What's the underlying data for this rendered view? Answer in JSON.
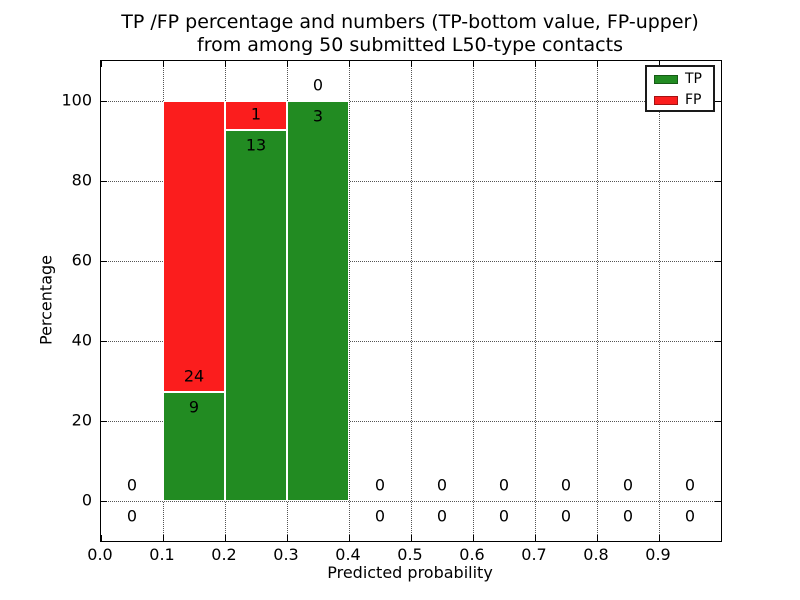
{
  "title": {
    "line1": "TP /FP percentage and numbers (TP-bottom value, FP-upper)",
    "line2": "from among 50 submitted L50-type contacts"
  },
  "axes": {
    "xlabel": "Predicted probability",
    "ylabel": "Percentage",
    "x_tick_values": [
      0.0,
      0.1,
      0.2,
      0.3,
      0.4,
      0.5,
      0.6,
      0.7,
      0.8,
      0.9
    ],
    "x_tick_labels": [
      "0.0",
      "0.1",
      "0.2",
      "0.3",
      "0.4",
      "0.5",
      "0.6",
      "0.7",
      "0.8",
      "0.9"
    ],
    "y_tick_values": [
      0,
      20,
      40,
      60,
      80,
      100
    ],
    "y_tick_labels": [
      "0",
      "20",
      "40",
      "60",
      "80",
      "100"
    ],
    "xlim": [
      0.0,
      1.0
    ],
    "ylim": [
      -10,
      110
    ],
    "grid": "dotted"
  },
  "legend": {
    "position": "upper-right",
    "items": [
      {
        "label": "TP",
        "color": "#228b22"
      },
      {
        "label": "FP",
        "color": "#fb1d1d"
      }
    ]
  },
  "chart_data": {
    "type": "bar",
    "stacked": true,
    "total_contacts": 50,
    "tp_color": "#228b22",
    "fp_color": "#fb1d1d",
    "bar_edge_color": "#ffffff",
    "bins": [
      {
        "range": [
          0.0,
          0.1
        ],
        "tp_count": 0,
        "fp_count": 0,
        "tp_pct": 0,
        "fp_pct": 0
      },
      {
        "range": [
          0.1,
          0.2
        ],
        "tp_count": 9,
        "fp_count": 24,
        "tp_pct": 27.27,
        "fp_pct": 72.73
      },
      {
        "range": [
          0.2,
          0.3
        ],
        "tp_count": 13,
        "fp_count": 1,
        "tp_pct": 92.86,
        "fp_pct": 7.14
      },
      {
        "range": [
          0.3,
          0.4
        ],
        "tp_count": 3,
        "fp_count": 0,
        "tp_pct": 100,
        "fp_pct": 0
      },
      {
        "range": [
          0.4,
          0.5
        ],
        "tp_count": 0,
        "fp_count": 0,
        "tp_pct": 0,
        "fp_pct": 0
      },
      {
        "range": [
          0.5,
          0.6
        ],
        "tp_count": 0,
        "fp_count": 0,
        "tp_pct": 0,
        "fp_pct": 0
      },
      {
        "range": [
          0.6,
          0.7
        ],
        "tp_count": 0,
        "fp_count": 0,
        "tp_pct": 0,
        "fp_pct": 0
      },
      {
        "range": [
          0.7,
          0.8
        ],
        "tp_count": 0,
        "fp_count": 0,
        "tp_pct": 0,
        "fp_pct": 0
      },
      {
        "range": [
          0.8,
          0.9
        ],
        "tp_count": 0,
        "fp_count": 0,
        "tp_pct": 0,
        "fp_pct": 0
      },
      {
        "range": [
          0.9,
          1.0
        ],
        "tp_count": 0,
        "fp_count": 0,
        "tp_pct": 0,
        "fp_pct": 0
      }
    ]
  }
}
